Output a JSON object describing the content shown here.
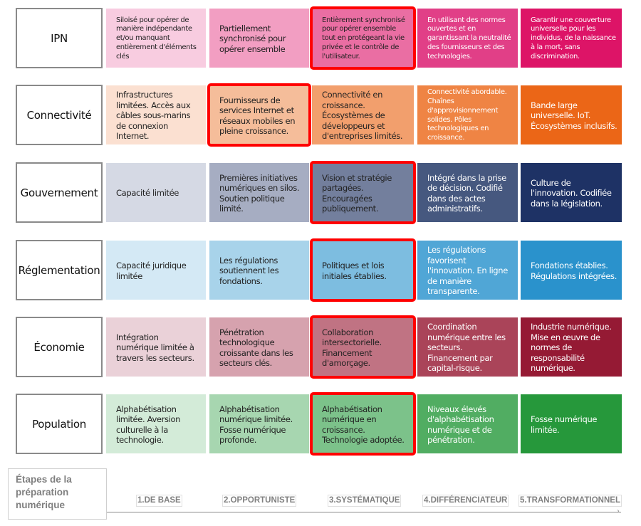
{
  "title": "Étapes de la préparation numérique",
  "footer": {
    "axis_label": "Étapes de la préparation numérique",
    "stages": [
      "1.DE BASE",
      "2.OPPORTUNISTE",
      "3.SYSTÉMATIQUE",
      "4.DIFFÉRENCIATEUR",
      "5.TRANSFORMATIONNEL"
    ]
  },
  "highlight_color": "#ff0000",
  "rows": [
    {
      "label": "IPN",
      "cells": [
        {
          "text": "Siloisé pour opérer de manière indépendante et/ou manquant entièrement d'éléments clés",
          "bg": "#f8cce0",
          "fg": "#222222",
          "highlight": false
        },
        {
          "text": "Partiellement synchronisé pour opérer ensemble",
          "bg": "#f29ec2",
          "fg": "#222222",
          "highlight": false
        },
        {
          "text": "Entièrement synchronisé pour opérer ensemble tout en protégeant la vie privée et le contrôle de l'utilisateur.",
          "bg": "#ea6ea3",
          "fg": "#222222",
          "highlight": true
        },
        {
          "text": "En utilisant des normes ouvertes et en garantissant la neutralité des fournisseurs et des technologies.",
          "bg": "#e13f87",
          "fg": "#ffffff",
          "highlight": false
        },
        {
          "text": "Garantir une couverture universelle pour les individus, de la naissance à la mort, sans discrimination.",
          "bg": "#dd1467",
          "fg": "#ffffff",
          "highlight": false
        }
      ]
    },
    {
      "label": "Connectivité",
      "cells": [
        {
          "text": "Infrastructures limitées. Accès aux câbles sous-marins de connexion Internet.",
          "bg": "#fbe0d1",
          "fg": "#222222",
          "highlight": false
        },
        {
          "text": "Fournisseurs de services Internet et réseaux mobiles en pleine croissance.",
          "bg": "#f5bd9a",
          "fg": "#222222",
          "highlight": true
        },
        {
          "text": "Connectivité en croissance. Écosystèmes de développeurs et d'entreprises limités.",
          "bg": "#f29f6d",
          "fg": "#222222",
          "highlight": false
        },
        {
          "text": "Connectivité abordable. Chaînes d'approvisionnement solides. Pôles technologiques en croissance.",
          "bg": "#ef8444",
          "fg": "#ffffff",
          "highlight": false
        },
        {
          "text": "Bande large universelle. IoT. Écosystèmes inclusifs.",
          "bg": "#eb6617",
          "fg": "#ffffff",
          "highlight": false
        }
      ]
    },
    {
      "label": "Gouvernement",
      "cells": [
        {
          "text": "Capacité limitée",
          "bg": "#d5d9e4",
          "fg": "#222222",
          "highlight": false
        },
        {
          "text": "Premières initiatives numériques en silos. Soutien politique limité.",
          "bg": "#a6adc2",
          "fg": "#222222",
          "highlight": false
        },
        {
          "text": "Vision et stratégie partagées. Encouragées publiquement.",
          "bg": "#737f9d",
          "fg": "#222222",
          "highlight": true
        },
        {
          "text": "Intégré dans la prise de décision. Codifié dans des actes administratifs.",
          "bg": "#46587f",
          "fg": "#ffffff",
          "highlight": false
        },
        {
          "text": "Culture de l'innovation. Codifiée dans la législation.",
          "bg": "#1e3265",
          "fg": "#ffffff",
          "highlight": false
        }
      ]
    },
    {
      "label": "Réglementation",
      "cells": [
        {
          "text": "Capacité juridique limitée",
          "bg": "#d4e9f5",
          "fg": "#222222",
          "highlight": false
        },
        {
          "text": "Les régulations soutiennent les fondations.",
          "bg": "#a8d3ea",
          "fg": "#222222",
          "highlight": false
        },
        {
          "text": "Politiques et lois initiales établies.",
          "bg": "#7dbde0",
          "fg": "#222222",
          "highlight": true
        },
        {
          "text": "Les régulations favorisent l'innovation. En ligne de manière transparente.",
          "bg": "#50a6d6",
          "fg": "#ffffff",
          "highlight": false
        },
        {
          "text": "Fondations établies. Régulations intégrées.",
          "bg": "#2a92cc",
          "fg": "#ffffff",
          "highlight": false
        }
      ]
    },
    {
      "label": "Économie",
      "cells": [
        {
          "text": "Intégration numérique limitée à travers les secteurs.",
          "bg": "#ead1d8",
          "fg": "#222222",
          "highlight": false
        },
        {
          "text": "Pénétration technologique croissante dans les secteurs clés.",
          "bg": "#d6a2ae",
          "fg": "#222222",
          "highlight": false
        },
        {
          "text": "Collaboration intersectorielle. Financement d'amorçage.",
          "bg": "#c07383",
          "fg": "#222222",
          "highlight": true
        },
        {
          "text": "Coordination numérique entre les secteurs. Financement par capital-risque.",
          "bg": "#aa4459",
          "fg": "#ffffff",
          "highlight": false
        },
        {
          "text": "Industrie numérique. Mise en œuvre de normes de responsabilité numérique.",
          "bg": "#951a34",
          "fg": "#ffffff",
          "highlight": false
        }
      ]
    },
    {
      "label": "Population",
      "cells": [
        {
          "text": "Alphabétisation limitée. Aversion culturelle à la technologie.",
          "bg": "#d3ebd8",
          "fg": "#222222",
          "highlight": false
        },
        {
          "text": "Alphabétisation numérique limitée. Fosse numérique profonde.",
          "bg": "#a7d6b0",
          "fg": "#222222",
          "highlight": false
        },
        {
          "text": "Alphabétisation numérique en croissance. Technologie adoptée.",
          "bg": "#7cc28a",
          "fg": "#222222",
          "highlight": true
        },
        {
          "text": "Niveaux élevés d'alphabétisation numérique et de pénétration.",
          "bg": "#51ad62",
          "fg": "#ffffff",
          "highlight": false
        },
        {
          "text": "Fosse numérique limitée.",
          "bg": "#26983b",
          "fg": "#ffffff",
          "highlight": false
        }
      ]
    }
  ]
}
